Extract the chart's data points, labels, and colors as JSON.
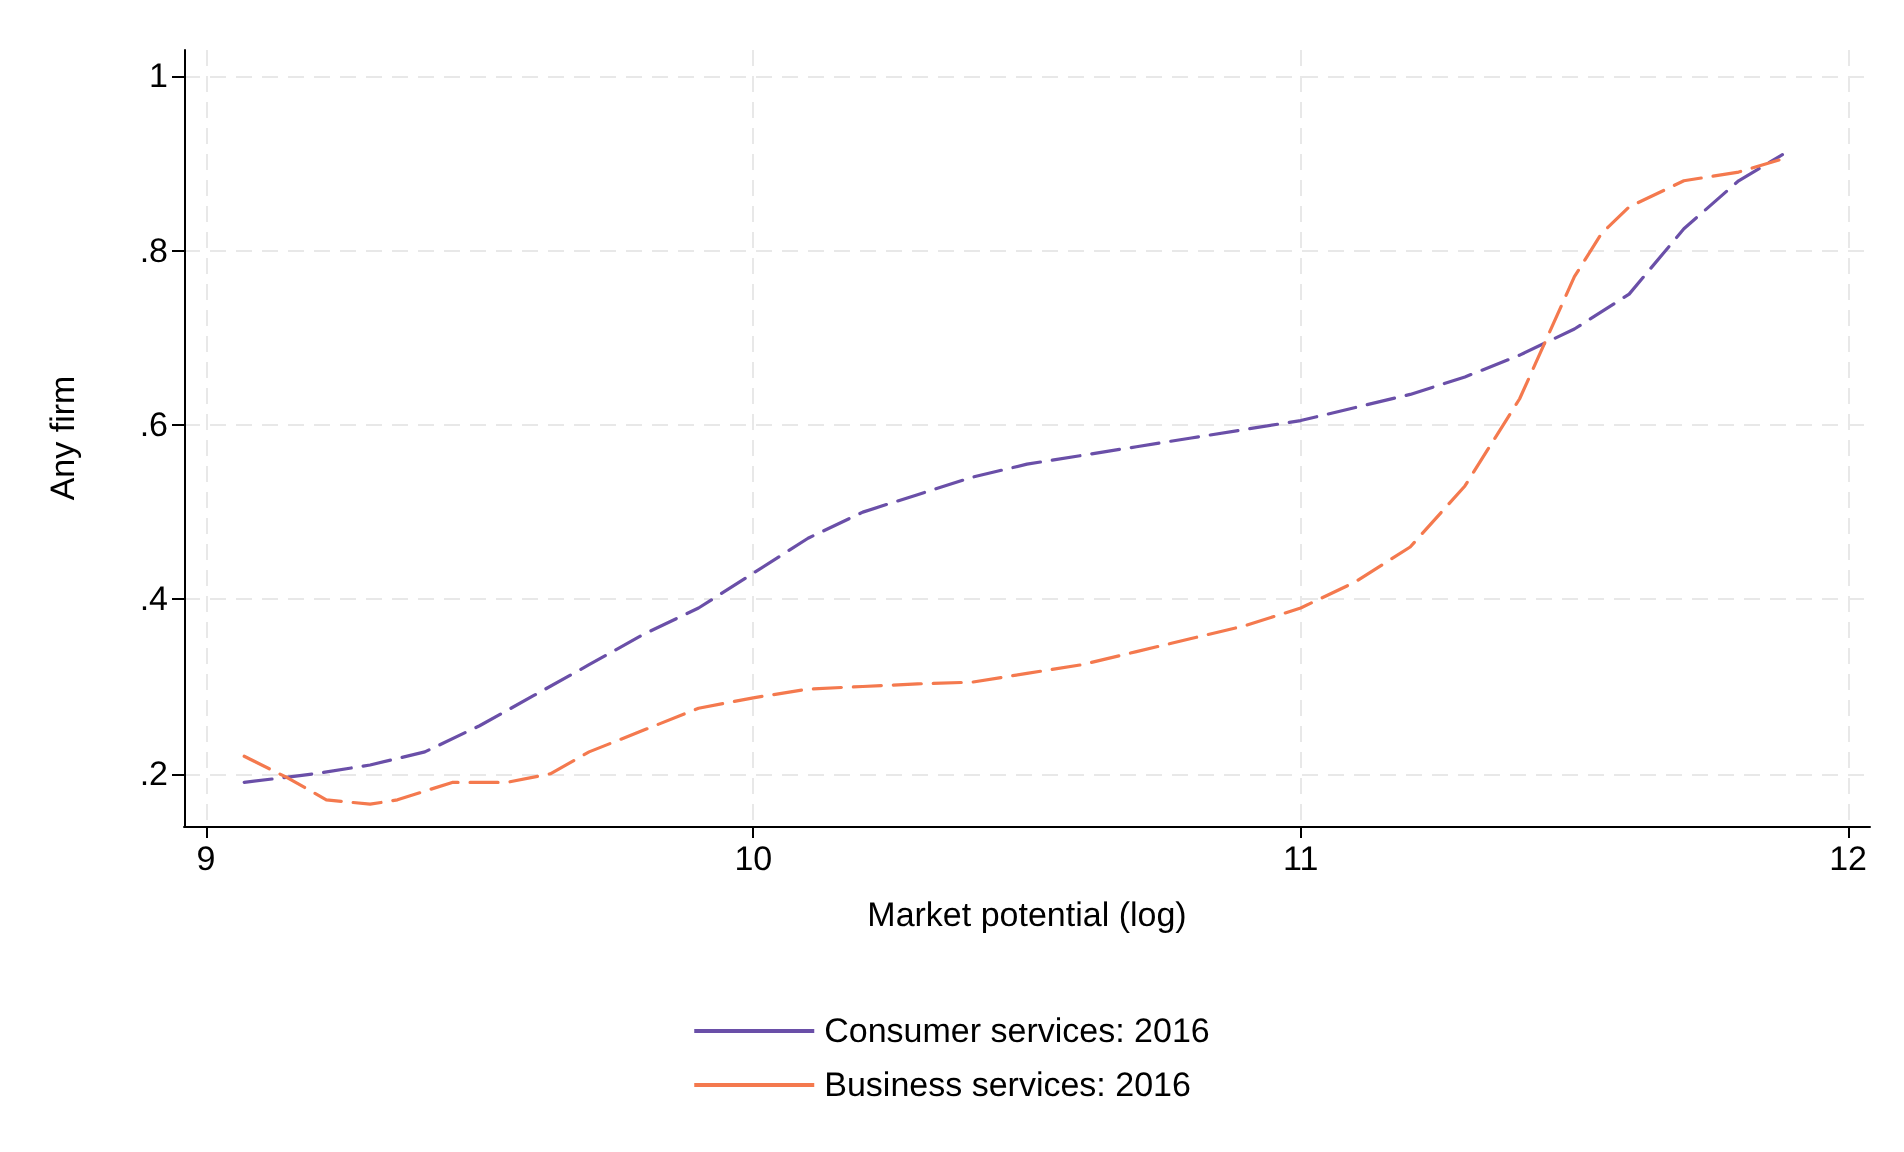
{
  "chart_data": {
    "type": "line",
    "xlabel": "Market potential (log)",
    "ylabel": "Any firm",
    "xlim": [
      8.96,
      12.04
    ],
    "xticks": [
      9,
      10,
      11,
      12
    ],
    "ylim": [
      0.14,
      1.03
    ],
    "yticks": [
      {
        "value": 0.2,
        "label": ".2"
      },
      {
        "value": 0.4,
        "label": ".4"
      },
      {
        "value": 0.6,
        "label": ".6"
      },
      {
        "value": 0.8,
        "label": ".8"
      },
      {
        "value": 1,
        "label": "1"
      }
    ],
    "grid": true,
    "legend": "bottom",
    "marker": "none",
    "line_style": "dashed",
    "series": [
      {
        "name": "Consumer services: 2016",
        "color": "#6a4fa8",
        "x": [
          9.07,
          9.2,
          9.3,
          9.4,
          9.5,
          9.6,
          9.7,
          9.8,
          9.9,
          10.0,
          10.1,
          10.2,
          10.3,
          10.4,
          10.5,
          10.6,
          10.7,
          10.8,
          10.9,
          11.0,
          11.1,
          11.2,
          11.3,
          11.4,
          11.5,
          11.6,
          11.7,
          11.8,
          11.88
        ],
        "values": [
          0.19,
          0.2,
          0.21,
          0.225,
          0.255,
          0.29,
          0.325,
          0.36,
          0.39,
          0.43,
          0.47,
          0.5,
          0.52,
          0.54,
          0.555,
          0.565,
          0.575,
          0.585,
          0.595,
          0.605,
          0.62,
          0.635,
          0.655,
          0.68,
          0.71,
          0.75,
          0.825,
          0.88,
          0.91
        ]
      },
      {
        "name": "Business services: 2016",
        "color": "#f4794e",
        "x": [
          9.07,
          9.15,
          9.22,
          9.3,
          9.35,
          9.45,
          9.55,
          9.63,
          9.7,
          9.8,
          9.9,
          10.0,
          10.1,
          10.2,
          10.3,
          10.4,
          10.5,
          10.6,
          10.7,
          10.8,
          10.9,
          11.0,
          11.1,
          11.2,
          11.3,
          11.4,
          11.45,
          11.5,
          11.55,
          11.6,
          11.7,
          11.8,
          11.88
        ],
        "values": [
          0.22,
          0.195,
          0.17,
          0.165,
          0.17,
          0.19,
          0.19,
          0.2,
          0.225,
          0.25,
          0.275,
          0.287,
          0.297,
          0.3,
          0.303,
          0.305,
          0.315,
          0.325,
          0.34,
          0.355,
          0.37,
          0.39,
          0.42,
          0.46,
          0.53,
          0.63,
          0.7,
          0.77,
          0.82,
          0.85,
          0.88,
          0.89,
          0.905
        ]
      }
    ]
  }
}
